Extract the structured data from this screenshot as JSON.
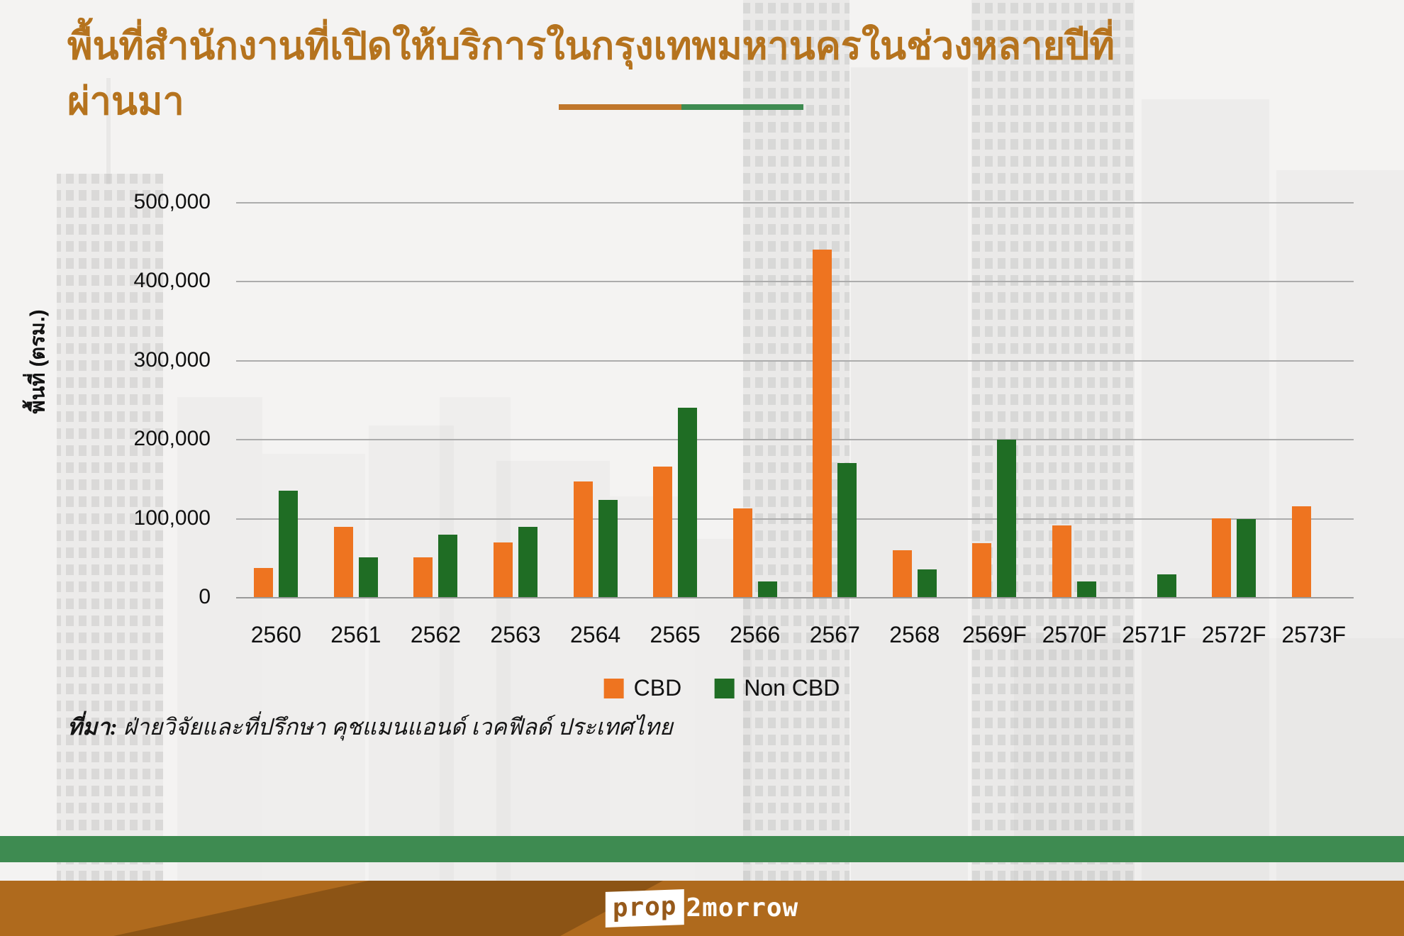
{
  "title": {
    "text": "พื้นที่สำนักงานที่เปิดให้บริการในกรุงเทพมหานครในช่วงหลายปีที่ผ่านมา",
    "color": "#b5731e"
  },
  "underline": {
    "left_color": "#c0762b",
    "right_color": "#3e8b51"
  },
  "chart_data": {
    "type": "bar",
    "categories": [
      "2560",
      "2561",
      "2562",
      "2563",
      "2564",
      "2565",
      "2566",
      "2567",
      "2568",
      "2569F",
      "2570F",
      "2571F",
      "2572F",
      "2573F"
    ],
    "series": [
      {
        "name": "CBD",
        "color": "#ee7420",
        "values": [
          37000,
          89000,
          50000,
          69000,
          146000,
          165000,
          112000,
          440000,
          59000,
          68000,
          91000,
          0,
          100000,
          115000
        ]
      },
      {
        "name": "Non CBD",
        "color": "#1f6d24",
        "values": [
          135000,
          50000,
          79000,
          89000,
          123000,
          240000,
          20000,
          170000,
          35000,
          199000,
          20000,
          29000,
          99000,
          0
        ]
      }
    ],
    "title": "พื้นที่สำนักงานที่เปิดให้บริการในกรุงเทพมหานครในช่วงหลายปีที่ผ่านมา",
    "xlabel": "",
    "ylabel": "พื้นที่ (ตรม.)",
    "ylim": [
      0,
      500000
    ],
    "grid": true,
    "legend_position": "bottom",
    "yticks": [
      {
        "value": 0,
        "label": "0"
      },
      {
        "value": 100000,
        "label": "100,000"
      },
      {
        "value": 200000,
        "label": "200,000"
      },
      {
        "value": 300000,
        "label": "300,000"
      },
      {
        "value": 400000,
        "label": "400,000"
      },
      {
        "value": 500000,
        "label": "500,000"
      }
    ]
  },
  "source": {
    "label": "ที่มา:",
    "text": " ฝ่ายวิจัยและที่ปรึกษา คุชแมนแอนด์ เวคฟีลด์ ประเทศไทย"
  },
  "stripe": {
    "color": "#3e8b51"
  },
  "footer": {
    "background": "#af6a1d",
    "dark_band": "#8c5415",
    "logo_prop": "prop",
    "logo_2morrow": "2morrow"
  }
}
